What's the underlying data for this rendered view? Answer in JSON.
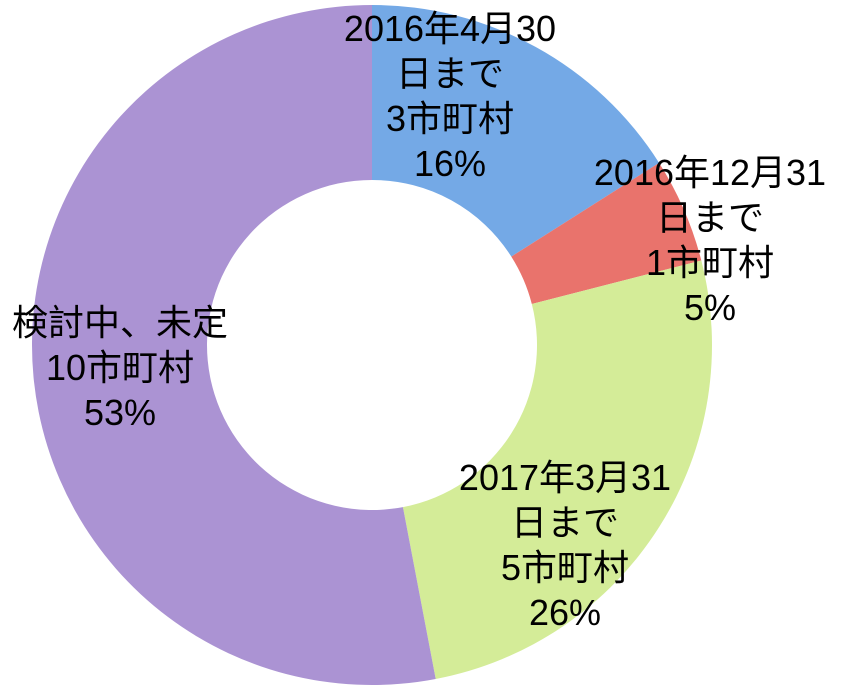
{
  "chart_data": {
    "type": "donut",
    "categories": [
      "2016年4月30日まで",
      "2016年12月31日まで",
      "2017年3月31日まで",
      "検討中、未定"
    ],
    "count_labels": [
      "3市町村",
      "1市町村",
      "5市町村",
      "10市町村"
    ],
    "values": [
      16,
      5,
      26,
      53
    ],
    "value_labels": [
      "16%",
      "5%",
      "26%",
      "53%"
    ],
    "colors": [
      "#74a9e6",
      "#e9736c",
      "#d4ec98",
      "#ab93d3"
    ]
  }
}
